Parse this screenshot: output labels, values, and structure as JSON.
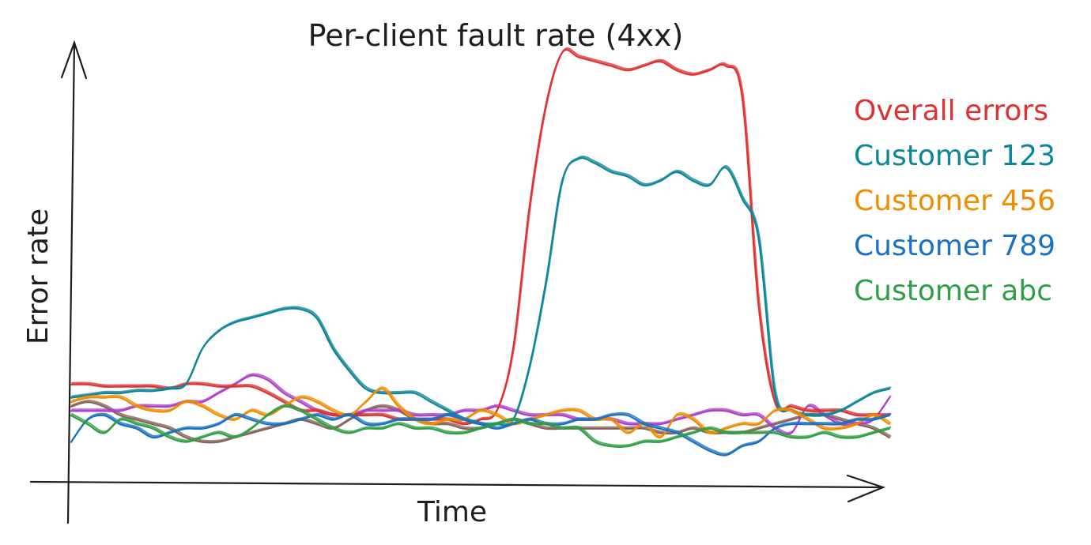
{
  "chart_data": {
    "type": "line",
    "title": "Per-client fault rate (4xx)",
    "xlabel": "Time",
    "ylabel": "Error rate",
    "grid": false,
    "legend_position": "right",
    "x": [
      0,
      2,
      4,
      6,
      8,
      10,
      12,
      14,
      16,
      18,
      20,
      22,
      24,
      26,
      28,
      30,
      32,
      34,
      36,
      38,
      40,
      42,
      44,
      46,
      48,
      50,
      52,
      54,
      56,
      58,
      60,
      62,
      64,
      66,
      68,
      70,
      72,
      74,
      76,
      78,
      80,
      82,
      84,
      86,
      88,
      90,
      92,
      94,
      96,
      98,
      100
    ],
    "xlim": [
      0,
      100
    ],
    "ylim": [
      0,
      100
    ],
    "series": [
      {
        "name": "Overall errors",
        "color": "#e03131",
        "values": [
          22,
          22,
          21.5,
          21.5,
          21.5,
          21.5,
          21,
          22,
          22,
          21.5,
          21.5,
          21.5,
          20,
          18,
          16,
          16,
          15,
          15,
          15,
          15,
          14,
          14,
          14,
          14,
          13,
          14,
          16,
          30,
          62,
          85,
          97,
          96,
          95,
          94,
          93,
          94,
          95,
          93,
          92,
          93,
          94,
          87,
          40,
          18,
          17,
          16,
          16,
          16,
          15,
          15,
          15
        ]
      },
      {
        "name": "Customer 123",
        "color": "#0c8599",
        "values": [
          19,
          19.5,
          20,
          20,
          20.5,
          20.5,
          21,
          22,
          30,
          34,
          36,
          37,
          38,
          39,
          39,
          37,
          30,
          25,
          21,
          20,
          20,
          20,
          18,
          16,
          14,
          13,
          13,
          14,
          26,
          45,
          68,
          73,
          72,
          70,
          69,
          67,
          68,
          70,
          68,
          67,
          71,
          64,
          55,
          20,
          16,
          15,
          15,
          16,
          18,
          20,
          21
        ]
      },
      {
        "name": "Customer 456",
        "color": "#f08c00",
        "values": [
          18,
          19,
          19,
          19,
          17,
          16,
          16,
          18,
          17,
          15,
          14,
          16,
          15,
          17,
          19,
          18,
          16,
          15,
          18,
          21,
          17,
          14,
          13,
          14,
          14,
          16,
          15,
          13,
          14,
          15,
          16,
          16,
          14,
          14,
          11,
          13,
          10,
          15,
          14,
          11,
          12,
          13,
          13,
          16,
          16,
          14,
          12,
          12,
          13,
          15,
          13
        ]
      },
      {
        "name": "Customer 789",
        "color": "#1971c2",
        "values": [
          9,
          14,
          15,
          13,
          12,
          10,
          11,
          12,
          12,
          13,
          15,
          14,
          13,
          13,
          14,
          15,
          14,
          15,
          13,
          13,
          14,
          14,
          14,
          15,
          14,
          13,
          12,
          13,
          14,
          13,
          13,
          14,
          14,
          15,
          15,
          13,
          12,
          11,
          9,
          7,
          6,
          8,
          9,
          12,
          13,
          13,
          13,
          13,
          14,
          14,
          15
        ]
      },
      {
        "name": "Customer abc",
        "color": "#2f9e44",
        "values": [
          15,
          13,
          11,
          14,
          13,
          12,
          10,
          9,
          10,
          11,
          10,
          12,
          15,
          17,
          16,
          14,
          12,
          11,
          12,
          12,
          13,
          12,
          12,
          11,
          11,
          12,
          13,
          14,
          13,
          13,
          12,
          12,
          9,
          8,
          8,
          9,
          9,
          10,
          11,
          12,
          11,
          11,
          11,
          11,
          10,
          10,
          11,
          10,
          10,
          11,
          12
        ]
      },
      {
        "name": "",
        "color": "#846358",
        "values": [
          17,
          18,
          17,
          15,
          14,
          13,
          12,
          10,
          9,
          9,
          10,
          11,
          12,
          13,
          14,
          13,
          12,
          14,
          16,
          17,
          16,
          14,
          13,
          13,
          12,
          12,
          13,
          14,
          13,
          12,
          12,
          12,
          12,
          12,
          12,
          12,
          11,
          11,
          12,
          11,
          11,
          11,
          12,
          13,
          14,
          15,
          15,
          14,
          13,
          12,
          10
        ]
      },
      {
        "name": "",
        "color": "#ae3ec9",
        "values": [
          16,
          16,
          16,
          16,
          17,
          17,
          17,
          18,
          18,
          20,
          22,
          24,
          23,
          20,
          18,
          16,
          15,
          15,
          16,
          16,
          16,
          15,
          15,
          15,
          16,
          16,
          17,
          16,
          15,
          15,
          15,
          14,
          14,
          14,
          13,
          13,
          13,
          14,
          15,
          16,
          16,
          15,
          15,
          12,
          11,
          17,
          15,
          13,
          13,
          14,
          19
        ]
      }
    ]
  }
}
